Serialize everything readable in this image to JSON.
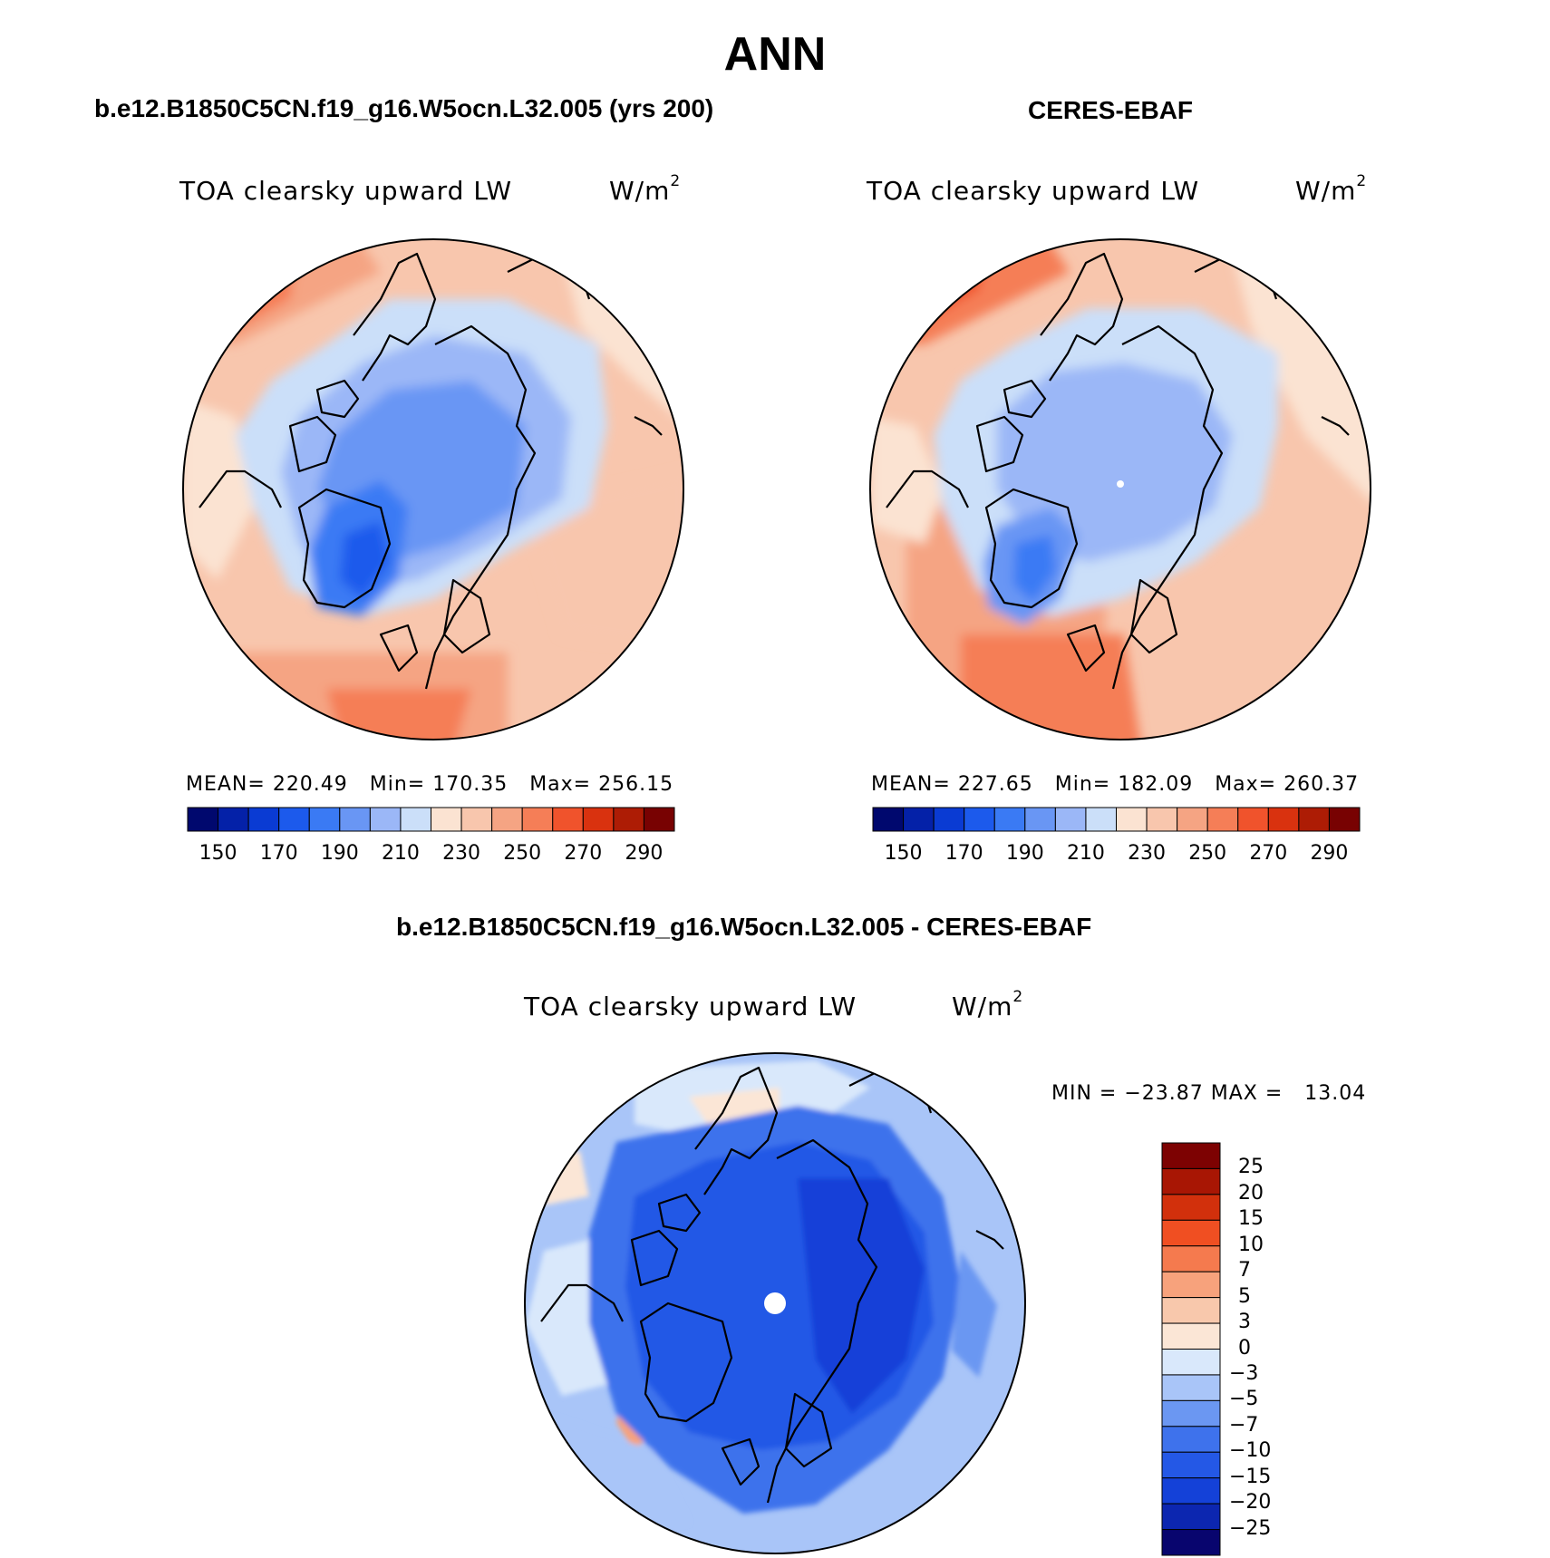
{
  "title": "ANN",
  "panels": [
    {
      "case": "b.e12.B1850C5CN.f19_g16.W5ocn.L32.005 (yrs 200)",
      "variable": "TOA clearsky upward LW",
      "units_base": "W/m",
      "units_exp": "2",
      "stats": "MEAN= 220.49   Min= 170.35   Max= 256.15"
    },
    {
      "case": "CERES-EBAF",
      "variable": "TOA clearsky upward LW",
      "units_base": "W/m",
      "units_exp": "2",
      "stats": "MEAN= 227.65   Min= 182.09   Max= 260.37"
    },
    {
      "case": "b.e12.B1850C5CN.f19_g16.W5ocn.L32.005 - CERES-EBAF",
      "variable": "TOA clearsky upward LW",
      "units_base": "W/m",
      "units_exp": "2",
      "stats": "MIN = −23.87 MAX =   13.04"
    }
  ],
  "chart_data": [
    {
      "type": "heatmap",
      "projection": "north-polar-stereographic",
      "title": "TOA clearsky upward LW",
      "case": "b.e12.B1850C5CN.f19_g16.W5ocn.L32.005 (yrs 200)",
      "mean": 220.49,
      "min": 170.35,
      "max": 256.15,
      "levels": [
        150,
        160,
        170,
        180,
        190,
        200,
        210,
        220,
        230,
        240,
        250,
        260,
        270,
        280,
        290
      ],
      "tick_labels": [
        "150",
        "170",
        "190",
        "210",
        "230",
        "250",
        "270",
        "290"
      ],
      "colors": [
        "#00086e",
        "#0421a8",
        "#0a3bd3",
        "#1c5aec",
        "#3a7af4",
        "#6996f4",
        "#9bb7f7",
        "#cbdff9",
        "#fbe3d2",
        "#f8c6ad",
        "#f5a483",
        "#f57e57",
        "#f0532c",
        "#d9320f",
        "#ad1c05",
        "#780202"
      ]
    },
    {
      "type": "heatmap",
      "projection": "north-polar-stereographic",
      "title": "TOA clearsky upward LW",
      "case": "CERES-EBAF",
      "mean": 227.65,
      "min": 182.09,
      "max": 260.37,
      "levels": [
        150,
        160,
        170,
        180,
        190,
        200,
        210,
        220,
        230,
        240,
        250,
        260,
        270,
        280,
        290
      ],
      "tick_labels": [
        "150",
        "170",
        "190",
        "210",
        "230",
        "250",
        "270",
        "290"
      ],
      "colors": [
        "#00086e",
        "#0421a8",
        "#0a3bd3",
        "#1c5aec",
        "#3a7af4",
        "#6996f4",
        "#9bb7f7",
        "#cbdff9",
        "#fbe3d2",
        "#f8c6ad",
        "#f5a483",
        "#f57e57",
        "#f0532c",
        "#d9320f",
        "#ad1c05",
        "#780202"
      ]
    },
    {
      "type": "heatmap",
      "projection": "north-polar-stereographic",
      "title": "TOA clearsky upward LW",
      "case": "b.e12.B1850C5CN.f19_g16.W5ocn.L32.005 - CERES-EBAF",
      "min": -23.87,
      "max": 13.04,
      "levels": [
        -25,
        -20,
        -15,
        -10,
        -7,
        -5,
        -3,
        0,
        3,
        5,
        7,
        10,
        15,
        20,
        25
      ],
      "tick_labels": [
        "25",
        "20",
        "15",
        "10",
        "7",
        "5",
        "3",
        "0",
        "−3",
        "−5",
        "−7",
        "−10",
        "−15",
        "−20",
        "−25"
      ],
      "colors": [
        "#08056e",
        "#0c26b0",
        "#1441d8",
        "#2458e6",
        "#3e72ec",
        "#6b97f2",
        "#a9c5f8",
        "#d9e8fb",
        "#fbe6d6",
        "#f8c8ac",
        "#f7a27c",
        "#f57a4e",
        "#f04f22",
        "#d2300c",
        "#a81604",
        "#7d0202"
      ]
    }
  ]
}
